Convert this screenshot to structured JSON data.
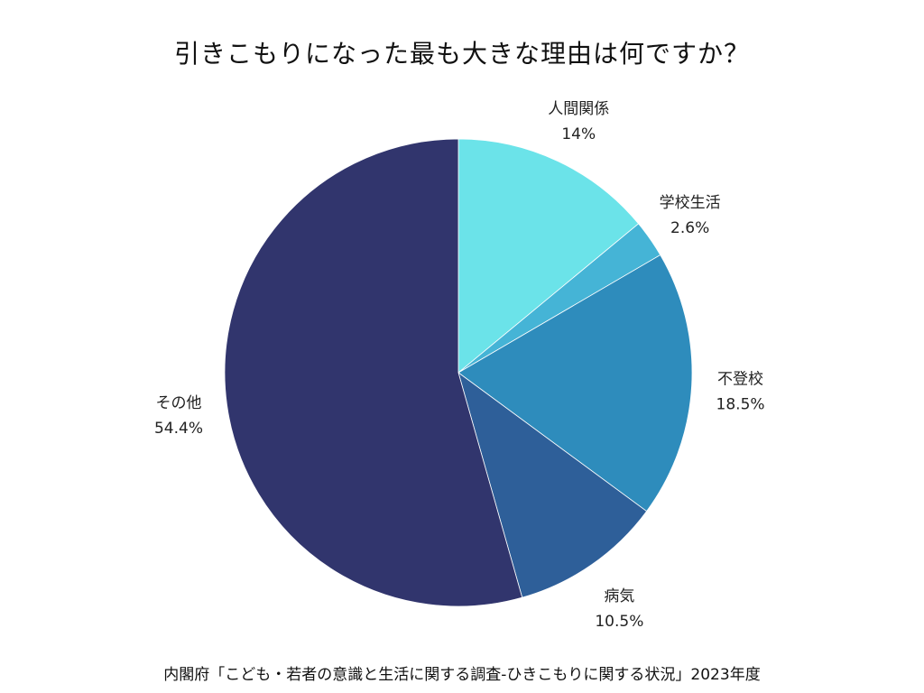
{
  "chart_data": {
    "type": "pie",
    "title": "引きこもりになった最も大きな理由は何ですか？",
    "source": "内閣府「こども・若者の意識と生活に関する調査-ひきこもりに関する状況」2023年度",
    "start_angle": "12 o'clock",
    "direction": "clockwise",
    "slices": [
      {
        "label": "人間関係",
        "value": 14,
        "value_text": "14%",
        "color": "#6be3e9"
      },
      {
        "label": "学校生活",
        "value": 2.6,
        "value_text": "2.6%",
        "color": "#45b4d6"
      },
      {
        "label": "不登校",
        "value": 18.5,
        "value_text": "18.5%",
        "color": "#2e8cbc"
      },
      {
        "label": "病気",
        "value": 10.5,
        "value_text": "10.5%",
        "color": "#2e5f99"
      },
      {
        "label": "その他",
        "value": 54.4,
        "value_text": "54.4%",
        "color": "#31356d"
      }
    ]
  }
}
